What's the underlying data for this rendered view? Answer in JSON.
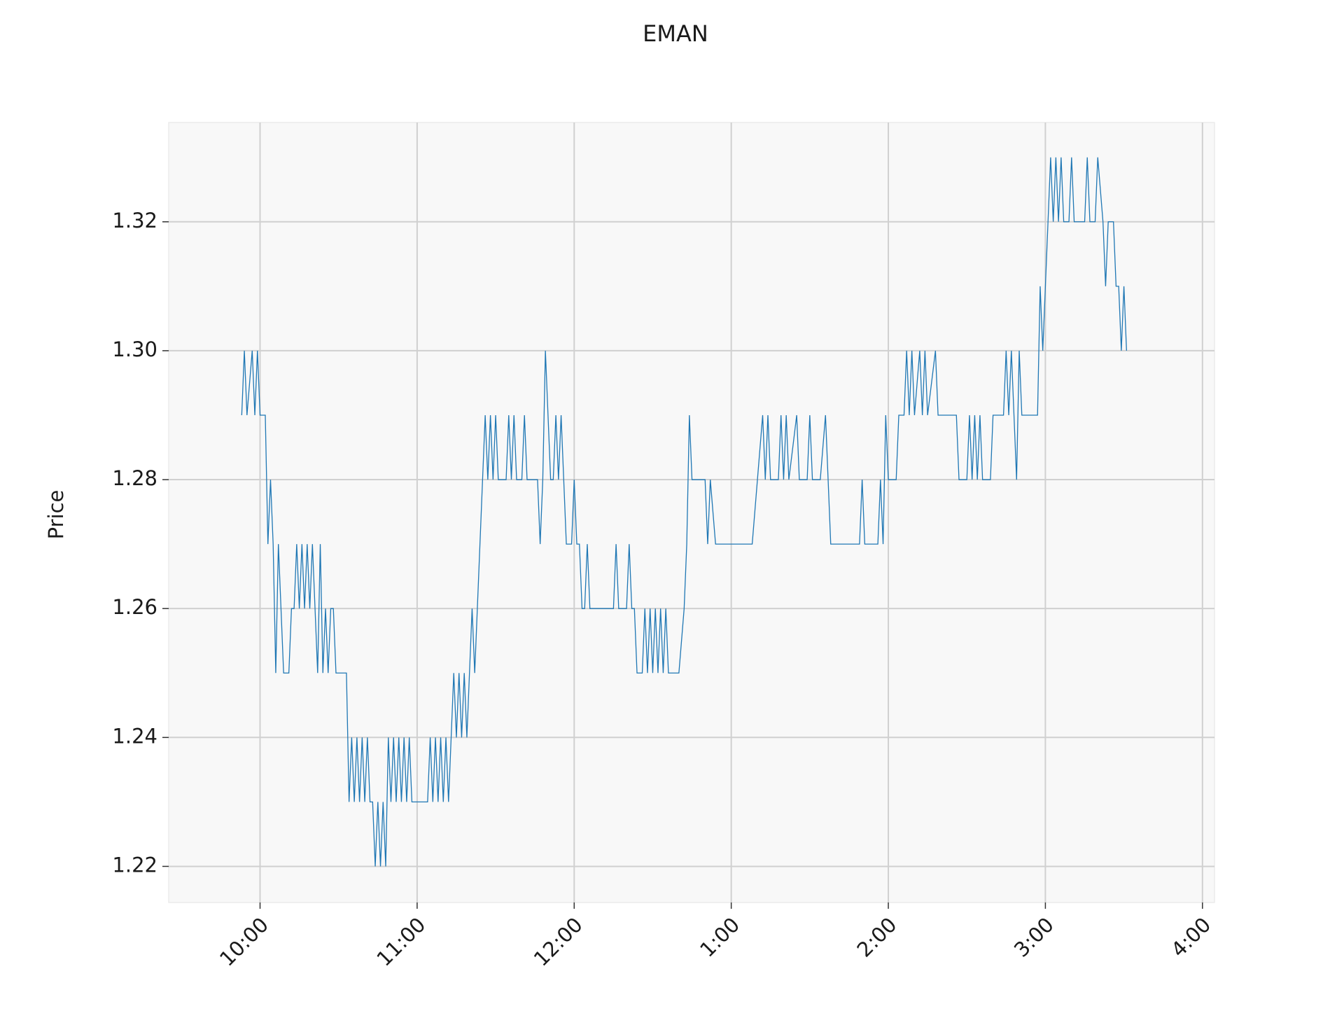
{
  "chart_data": {
    "type": "line",
    "title": "EMAN",
    "y_label": "Price",
    "color": "#1f77b4",
    "grid": true,
    "xlim": [
      565.1,
      964.6
    ],
    "xticks": [
      {
        "value": 600,
        "label": "10:00"
      },
      {
        "value": 660,
        "label": "11:00"
      },
      {
        "value": 720,
        "label": "12:00"
      },
      {
        "value": 780,
        "label": "1:00"
      },
      {
        "value": 840,
        "label": "2:00"
      },
      {
        "value": 900,
        "label": "3:00"
      },
      {
        "value": 960,
        "label": "4:00"
      }
    ],
    "ylim": [
      1.2144,
      1.3354
    ],
    "yticks": [
      {
        "value": 1.22,
        "label": "1.22"
      },
      {
        "value": 1.24,
        "label": "1.24"
      },
      {
        "value": 1.26,
        "label": "1.26"
      },
      {
        "value": 1.28,
        "label": "1.28"
      },
      {
        "value": 1.3,
        "label": "1.30"
      },
      {
        "value": 1.32,
        "label": "1.32"
      }
    ],
    "x": [
      593,
      594,
      595,
      597,
      598,
      599,
      600,
      602,
      603,
      604,
      605,
      606,
      607,
      608,
      609,
      611,
      612,
      613,
      614,
      615,
      616,
      617,
      618,
      619,
      620,
      621,
      622,
      623,
      624,
      625,
      626,
      627,
      628,
      629,
      633,
      634,
      635,
      636,
      637,
      638,
      639,
      640,
      641,
      642,
      643,
      644,
      645,
      646,
      647,
      648,
      649,
      650,
      651,
      652,
      653,
      654,
      655,
      656,
      657,
      658,
      664,
      665,
      666,
      667,
      668,
      669,
      670,
      671,
      672,
      673,
      674,
      675,
      676,
      677,
      678,
      679,
      680,
      681,
      682,
      683,
      684,
      685,
      686,
      687,
      688,
      689,
      690,
      691,
      694,
      695,
      696,
      697,
      698,
      700,
      701,
      702,
      706,
      707,
      708,
      709,
      710,
      711,
      712,
      713,
      714,
      715,
      716,
      717,
      719,
      720,
      721,
      722,
      723,
      724,
      725,
      726,
      735,
      736,
      737,
      740,
      741,
      742,
      743,
      744,
      745,
      746,
      747,
      748,
      749,
      750,
      751,
      752,
      753,
      754,
      755,
      756,
      760,
      762,
      763,
      764,
      765,
      770,
      771,
      772,
      774,
      788,
      790,
      792,
      793,
      794,
      795,
      798,
      799,
      800,
      801,
      802,
      805,
      806,
      809,
      810,
      811,
      814,
      816,
      817,
      818,
      829,
      830,
      831,
      836,
      837,
      838,
      839,
      840,
      843,
      844,
      846,
      847,
      848,
      849,
      850,
      852,
      853,
      854,
      855,
      858,
      859,
      866,
      867,
      870,
      871,
      872,
      873,
      874,
      875,
      876,
      879,
      880,
      884,
      885,
      886,
      887,
      888,
      889,
      890,
      891,
      897,
      898,
      899,
      900,
      901,
      902,
      903,
      904,
      905,
      906,
      907,
      909,
      910,
      911,
      915,
      916,
      917,
      919,
      920,
      922,
      923,
      924,
      926,
      927,
      928,
      929,
      930,
      931
    ],
    "values": [
      1.29,
      1.3,
      1.29,
      1.3,
      1.29,
      1.3,
      1.29,
      1.29,
      1.27,
      1.28,
      1.27,
      1.25,
      1.27,
      1.26,
      1.25,
      1.25,
      1.26,
      1.26,
      1.27,
      1.26,
      1.27,
      1.26,
      1.27,
      1.26,
      1.27,
      1.26,
      1.25,
      1.27,
      1.25,
      1.26,
      1.25,
      1.26,
      1.26,
      1.25,
      1.25,
      1.23,
      1.24,
      1.23,
      1.24,
      1.23,
      1.24,
      1.23,
      1.24,
      1.23,
      1.23,
      1.22,
      1.23,
      1.22,
      1.23,
      1.22,
      1.24,
      1.23,
      1.24,
      1.23,
      1.24,
      1.23,
      1.24,
      1.23,
      1.24,
      1.23,
      1.23,
      1.24,
      1.23,
      1.24,
      1.23,
      1.24,
      1.23,
      1.24,
      1.23,
      1.24,
      1.25,
      1.24,
      1.25,
      1.24,
      1.25,
      1.24,
      1.25,
      1.26,
      1.25,
      1.26,
      1.27,
      1.28,
      1.29,
      1.28,
      1.29,
      1.28,
      1.29,
      1.28,
      1.28,
      1.29,
      1.28,
      1.29,
      1.28,
      1.28,
      1.29,
      1.28,
      1.28,
      1.27,
      1.28,
      1.3,
      1.29,
      1.28,
      1.28,
      1.29,
      1.28,
      1.29,
      1.28,
      1.27,
      1.27,
      1.28,
      1.27,
      1.27,
      1.26,
      1.26,
      1.27,
      1.26,
      1.26,
      1.27,
      1.26,
      1.26,
      1.27,
      1.26,
      1.26,
      1.25,
      1.25,
      1.25,
      1.26,
      1.25,
      1.26,
      1.25,
      1.26,
      1.25,
      1.26,
      1.25,
      1.26,
      1.25,
      1.25,
      1.26,
      1.27,
      1.29,
      1.28,
      1.28,
      1.27,
      1.28,
      1.27,
      1.27,
      1.28,
      1.29,
      1.28,
      1.29,
      1.28,
      1.28,
      1.29,
      1.28,
      1.29,
      1.28,
      1.29,
      1.28,
      1.28,
      1.29,
      1.28,
      1.28,
      1.29,
      1.28,
      1.27,
      1.27,
      1.28,
      1.27,
      1.27,
      1.28,
      1.27,
      1.29,
      1.28,
      1.28,
      1.29,
      1.29,
      1.3,
      1.29,
      1.3,
      1.29,
      1.3,
      1.29,
      1.3,
      1.29,
      1.3,
      1.29,
      1.29,
      1.28,
      1.28,
      1.29,
      1.28,
      1.29,
      1.28,
      1.29,
      1.28,
      1.28,
      1.29,
      1.29,
      1.3,
      1.29,
      1.3,
      1.29,
      1.28,
      1.3,
      1.29,
      1.29,
      1.31,
      1.3,
      1.31,
      1.32,
      1.33,
      1.32,
      1.33,
      1.32,
      1.33,
      1.32,
      1.32,
      1.33,
      1.32,
      1.32,
      1.33,
      1.32,
      1.32,
      1.33,
      1.32,
      1.31,
      1.32,
      1.32,
      1.31,
      1.31,
      1.3,
      1.31,
      1.3
    ]
  }
}
